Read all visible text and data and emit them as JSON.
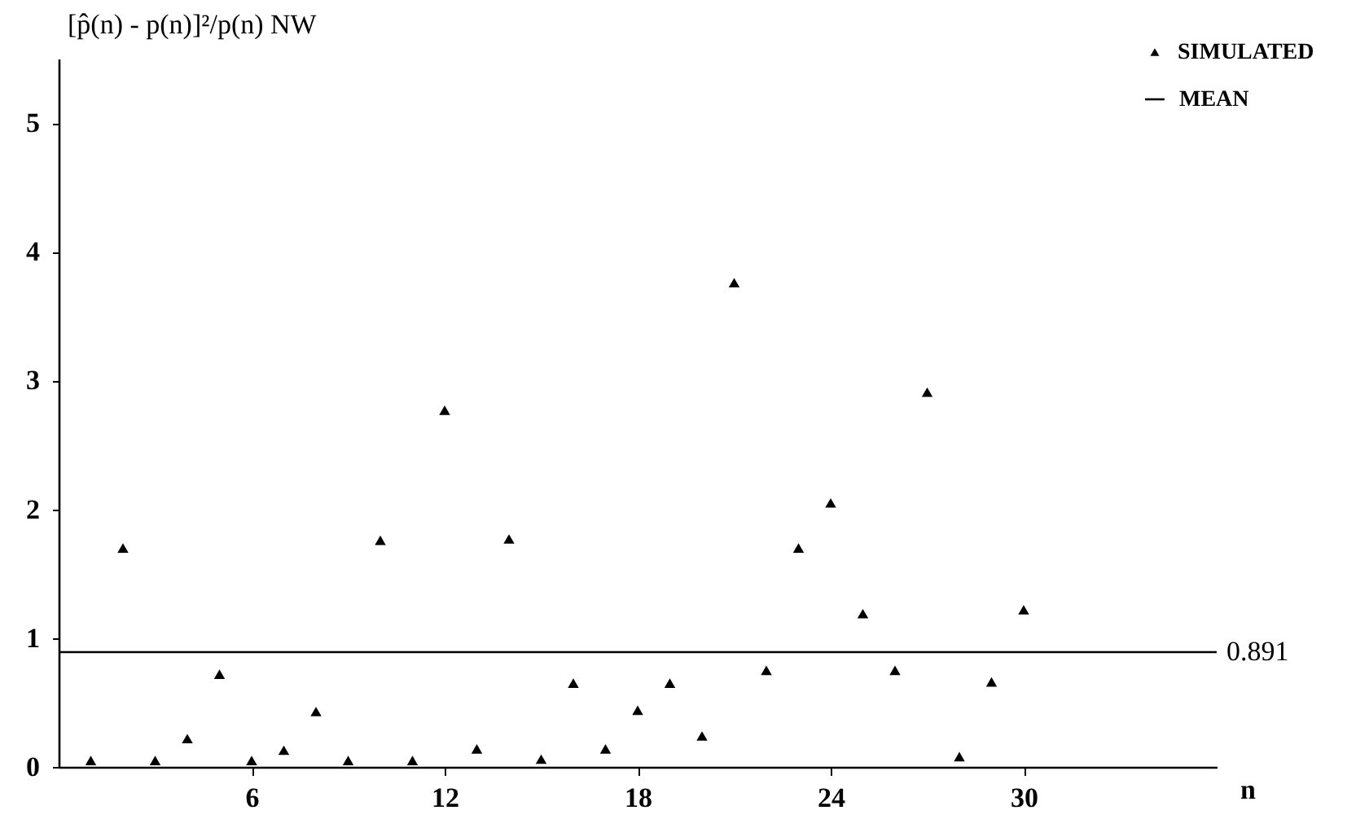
{
  "chart_data": {
    "type": "scatter",
    "xlabel": "n",
    "ylabel": "[p̂(n) - p(n)]²/p(n) NW",
    "x": [
      1,
      2,
      3,
      4,
      5,
      6,
      7,
      8,
      9,
      10,
      11,
      12,
      13,
      14,
      15,
      16,
      17,
      18,
      19,
      20,
      21,
      22,
      23,
      24,
      25,
      26,
      27,
      28,
      29,
      30
    ],
    "series": [
      {
        "name": "SIMULATED",
        "color": "#000000",
        "values": [
          0.05,
          1.7,
          0.05,
          0.22,
          0.72,
          0.05,
          0.13,
          0.43,
          0.05,
          1.76,
          0.05,
          2.77,
          0.14,
          1.77,
          0.06,
          0.65,
          0.14,
          0.44,
          0.65,
          0.24,
          3.76,
          0.75,
          1.7,
          2.05,
          1.19,
          0.75,
          2.91,
          0.08,
          0.66,
          1.22
        ]
      }
    ],
    "ref_lines": [
      {
        "axis": "y",
        "value": 0.891,
        "label": "0.891",
        "color": "#000000"
      }
    ],
    "annotations": [
      "MEAN"
    ],
    "xlim": [
      0,
      36
    ],
    "xticks": [
      6,
      12,
      18,
      24,
      30
    ],
    "ylim": [
      0,
      5.5
    ],
    "yticks": [
      0,
      1,
      2,
      3,
      4,
      5
    ],
    "grid": false,
    "legend": "top right",
    "marker": "triangle"
  }
}
